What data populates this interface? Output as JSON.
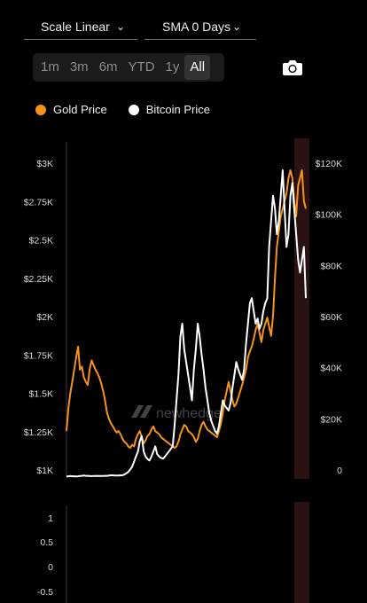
{
  "toolbar": {
    "scale_label": "Scale Linear",
    "sma_label": "SMA 0 Days",
    "ranges": [
      "1m",
      "3m",
      "6m",
      "YTD",
      "1y",
      "All"
    ],
    "active_range": "All"
  },
  "legend": {
    "gold_label": "Gold Price",
    "btc_label": "Bitcoin Price"
  },
  "watermark": "newhedge",
  "colors": {
    "gold": "#f7931a",
    "bitcoin": "#ffffff",
    "highlight_band": "#3a1a1a"
  },
  "chart_data": [
    {
      "type": "line",
      "title": "",
      "left_axis": {
        "ticks": [
          "$1K",
          "$1.25K",
          "$1.5K",
          "$1.75K",
          "$2K",
          "$2.25K",
          "$2.5K",
          "$2.75K",
          "$3K"
        ],
        "ylim": [
          1000,
          3000
        ]
      },
      "right_axis": {
        "ticks": [
          "0",
          "$20K",
          "$40K",
          "$60K",
          "$80K",
          "$100K",
          "$120K"
        ],
        "ylim": [
          0,
          120000
        ]
      },
      "series": [
        {
          "name": "Gold Price",
          "axis": "left",
          "values": [
            1300,
            1450,
            1550,
            1620,
            1700,
            1780,
            1850,
            1700,
            1720,
            1650,
            1620,
            1600,
            1700,
            1760,
            1730,
            1700,
            1680,
            1650,
            1610,
            1560,
            1500,
            1420,
            1380,
            1350,
            1330,
            1310,
            1290,
            1300,
            1280,
            1250,
            1230,
            1220,
            1200,
            1190,
            1210,
            1200,
            1250,
            1280,
            1300,
            1260,
            1220,
            1240,
            1270,
            1280,
            1310,
            1330,
            1300,
            1290,
            1280,
            1260,
            1250,
            1240,
            1230,
            1220,
            1210,
            1200,
            1190,
            1200,
            1230,
            1280,
            1310,
            1340,
            1330,
            1300,
            1290,
            1280,
            1260,
            1230,
            1250,
            1300,
            1340,
            1360,
            1330,
            1310,
            1300,
            1290,
            1280,
            1270,
            1260,
            1300,
            1350,
            1420,
            1500,
            1560,
            1620,
            1560,
            1500,
            1460,
            1480,
            1520,
            1560,
            1600,
            1650,
            1700,
            1780,
            1820,
            1850,
            1900,
            1960,
            2000,
            1940,
            1880,
            1960,
            2000,
            2040,
            1980,
            1920,
            2050,
            2300,
            2500,
            2600,
            2700,
            2750,
            2800,
            2850,
            2950,
            3000,
            2950,
            2800,
            2700,
            2900,
            2950,
            3000,
            2800,
            2750
          ]
        },
        {
          "name": "Bitcoin Price",
          "axis": "right",
          "values": [
            200,
            300,
            400,
            300,
            300,
            250,
            300,
            400,
            500,
            600,
            500,
            500,
            400,
            350,
            400,
            450,
            500,
            450,
            400,
            450,
            500,
            500,
            600,
            700,
            700,
            600,
            600,
            600,
            700,
            700,
            1000,
            1500,
            2000,
            3000,
            4000,
            6000,
            8000,
            10000,
            14000,
            16000,
            10000,
            8000,
            7000,
            6500,
            8000,
            10000,
            12000,
            9000,
            8000,
            7500,
            7200,
            8000,
            9000,
            10000,
            11000,
            12000,
            20000,
            30000,
            40000,
            55000,
            60000,
            50000,
            45000,
            40000,
            35000,
            30000,
            42000,
            50000,
            60000,
            55000,
            48000,
            42000,
            35000,
            30000,
            25000,
            22000,
            20000,
            18000,
            17000,
            20000,
            25000,
            30000,
            28000,
            27000,
            26000,
            29000,
            35000,
            40000,
            45000,
            42000,
            40000,
            38000,
            42000,
            52000,
            60000,
            68000,
            70000,
            65000,
            60000,
            62000,
            58000,
            60000,
            65000,
            68000,
            70000,
            90000,
            100000,
            110000,
            105000,
            95000,
            100000,
            110000,
            120000,
            105000,
            90000,
            95000,
            110000,
            115000,
            105000,
            95000,
            85000,
            80000,
            85000,
            90000,
            70000
          ]
        }
      ]
    },
    {
      "type": "line",
      "title": "",
      "left_axis": {
        "ticks": [
          "1",
          "0.5",
          "0",
          "-0.5"
        ],
        "ylim": [
          -0.6,
          1.1
        ]
      },
      "series": []
    }
  ]
}
